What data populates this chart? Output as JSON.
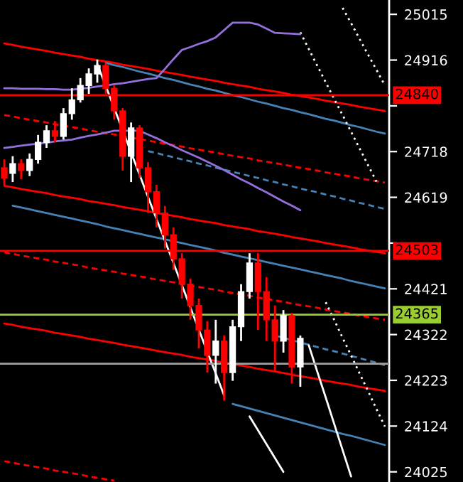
{
  "chart_data": {
    "type": "candlestick",
    "categories": [
      null,
      null,
      null,
      null,
      null,
      null,
      null,
      null,
      null,
      null,
      null,
      null,
      null,
      null,
      null,
      null,
      null,
      null,
      null,
      null,
      null,
      null,
      null,
      null,
      null,
      null,
      null,
      null,
      null,
      null,
      null,
      null,
      null,
      null,
      null,
      null,
      null,
      null,
      null,
      null,
      null,
      null,
      null,
      null,
      null,
      null
    ],
    "ohlc": [
      [
        24683,
        24701,
        24646,
        24661
      ],
      [
        24671,
        24708,
        24652,
        24692
      ],
      [
        24692,
        24701,
        24658,
        24677
      ],
      [
        24677,
        24714,
        24665,
        24701
      ],
      [
        24701,
        24754,
        24692,
        24738
      ],
      [
        24738,
        24775,
        24726,
        24763
      ],
      [
        24763,
        24784,
        24738,
        24751
      ],
      [
        24751,
        24812,
        24744,
        24800
      ],
      [
        24800,
        24855,
        24787,
        24830
      ],
      [
        24830,
        24877,
        24824,
        24861
      ],
      [
        24861,
        24898,
        24843,
        24886
      ],
      [
        24886,
        24917,
        24867,
        24904
      ],
      [
        24904,
        24910,
        24843,
        24855
      ],
      [
        24855,
        24861,
        24787,
        24806
      ],
      [
        24806,
        24812,
        24677,
        24708
      ],
      [
        24708,
        24781,
        24652,
        24769
      ],
      [
        24769,
        24775,
        24661,
        24683
      ],
      [
        24683,
        24695,
        24585,
        24631
      ],
      [
        24631,
        24646,
        24554,
        24585
      ],
      [
        24585,
        24600,
        24508,
        24538
      ],
      [
        24538,
        24554,
        24462,
        24486
      ],
      [
        24486,
        24498,
        24400,
        24431
      ],
      [
        24431,
        24443,
        24354,
        24385
      ],
      [
        24385,
        24400,
        24292,
        24332
      ],
      [
        24332,
        24351,
        24240,
        24277
      ],
      [
        24277,
        24354,
        24216,
        24308
      ],
      [
        24308,
        24320,
        24179,
        24240
      ],
      [
        24240,
        24354,
        24222,
        24339
      ],
      [
        24339,
        24431,
        24308,
        24415
      ],
      [
        24415,
        24498,
        24400,
        24477
      ],
      [
        24477,
        24498,
        24332,
        24415
      ],
      [
        24415,
        24446,
        24308,
        24354
      ],
      [
        24354,
        24385,
        24240,
        24308
      ],
      [
        24308,
        24375,
        24283,
        24363
      ],
      [
        24363,
        24369,
        24216,
        24252
      ],
      [
        24252,
        24320,
        24209,
        24314
      ],
      null,
      null,
      null,
      null,
      null,
      null,
      null,
      null,
      null,
      null
    ],
    "colors": [
      "#ff0000",
      "#ffffff",
      "#ff0000",
      "#ffffff",
      "#ffffff",
      "#ffffff",
      "#ff0000",
      "#ffffff",
      "#ffffff",
      "#ffffff",
      "#ffffff",
      "#ffffff",
      "#ff0000",
      "#ff0000",
      "#ff0000",
      "#ffffff",
      "#ff0000",
      "#ff0000",
      "#ff0000",
      "#ff0000",
      "#ff0000",
      "#ff0000",
      "#ff0000",
      "#ff0000",
      "#ff0000",
      "#ffffff",
      "#ff0000",
      "#ffffff",
      "#ffffff",
      "#ffffff",
      "#ff0000",
      "#ff0000",
      "#ff0000",
      "#ffffff",
      "#ff0000",
      "#ffffff",
      null,
      null,
      null,
      null,
      null,
      null,
      null,
      null,
      null,
      null
    ],
    "series": [
      {
        "type": "line",
        "color": "#ff0000",
        "line_style": "solid",
        "values": [
          24952,
          24949,
          24945,
          24942,
          24939,
          24936,
          24932,
          24929,
          24926,
          24923,
          24919,
          24916,
          24913,
          24910,
          24906,
          24903,
          24900,
          24897,
          24893,
          24890,
          24887,
          24884,
          24880,
          24877,
          24874,
          24871,
          24867,
          24864,
          24861,
          24858,
          24854,
          24851,
          24848,
          24845,
          24841,
          24838,
          24835,
          24832,
          24828,
          24825,
          24822,
          24819,
          24815,
          24812,
          24809,
          24806
        ]
      },
      {
        "type": "line",
        "color": "#ff0000",
        "line_style": "dashed",
        "values": [
          24797,
          24794,
          24790,
          24787,
          24784,
          24781,
          24777,
          24774,
          24771,
          24768,
          24764,
          24761,
          24758,
          24755,
          24751,
          24748,
          24745,
          24742,
          24738,
          24735,
          24732,
          24729,
          24725,
          24722,
          24719,
          24716,
          24712,
          24709,
          24706,
          24703,
          24699,
          24696,
          24693,
          24690,
          24686,
          24683,
          24680,
          24677,
          24673,
          24670,
          24667,
          24664,
          24660,
          24657,
          24654,
          24651
        ]
      },
      {
        "type": "line",
        "color": "#ff0000",
        "line_style": "solid",
        "values": [
          24644,
          24641,
          24637,
          24634,
          24631,
          24628,
          24624,
          24621,
          24618,
          24615,
          24611,
          24608,
          24605,
          24602,
          24598,
          24595,
          24592,
          24589,
          24585,
          24582,
          24579,
          24576,
          24572,
          24569,
          24566,
          24563,
          24559,
          24556,
          24553,
          24550,
          24546,
          24543,
          24540,
          24537,
          24533,
          24530,
          24527,
          24524,
          24520,
          24517,
          24514,
          24511,
          24507,
          24504,
          24501,
          24498
        ]
      },
      {
        "type": "line",
        "color": "#ff0000",
        "line_style": "dashed",
        "values": [
          24500,
          24497,
          24493,
          24490,
          24487,
          24484,
          24480,
          24477,
          24474,
          24471,
          24467,
          24464,
          24461,
          24458,
          24454,
          24451,
          24448,
          24445,
          24441,
          24438,
          24435,
          24432,
          24428,
          24425,
          24422,
          24419,
          24415,
          24412,
          24409,
          24406,
          24402,
          24399,
          24396,
          24393,
          24389,
          24386,
          24383,
          24380,
          24376,
          24373,
          24370,
          24367,
          24363,
          24360,
          24357,
          24354
        ]
      },
      {
        "type": "line",
        "color": "#ff0000",
        "line_style": "solid",
        "values": [
          24346,
          24343,
          24339,
          24336,
          24333,
          24330,
          24326,
          24323,
          24320,
          24317,
          24313,
          24310,
          24307,
          24304,
          24300,
          24297,
          24294,
          24291,
          24287,
          24284,
          24281,
          24278,
          24274,
          24271,
          24268,
          24265,
          24261,
          24258,
          24255,
          24252,
          24248,
          24245,
          24242,
          24239,
          24235,
          24232,
          24229,
          24226,
          24222,
          24219,
          24216,
          24213,
          24209,
          24206,
          24203,
          24200
        ]
      },
      {
        "type": "line",
        "color": "#ff0000",
        "line_style": "dashed",
        "values": [
          24048,
          24045,
          24041,
          24038,
          24035,
          24032,
          24028,
          24025,
          24022,
          24019,
          24015,
          24012,
          24009,
          24006,
          null,
          null,
          null,
          null,
          null,
          null,
          null,
          null,
          null,
          null,
          null,
          null,
          null,
          null,
          null,
          null,
          null,
          null,
          null,
          null,
          null,
          null,
          null,
          null,
          null,
          null,
          null,
          null,
          null,
          null,
          null,
          null
        ]
      },
      {
        "type": "line",
        "color": "#4682b4",
        "line_style": "solid",
        "values": [
          null,
          null,
          null,
          null,
          null,
          null,
          null,
          null,
          null,
          null,
          null,
          null,
          24910,
          24905,
          24901,
          24896,
          24891,
          24887,
          24882,
          24877,
          24873,
          24868,
          24863,
          24859,
          24854,
          24850,
          24845,
          24840,
          24836,
          24831,
          24826,
          24822,
          24817,
          24812,
          24808,
          24803,
          24799,
          24794,
          24789,
          24785,
          24780,
          24775,
          24771,
          24766,
          24761,
          24757
        ]
      },
      {
        "type": "line",
        "color": "#4682b4",
        "line_style": "dashed",
        "values": [
          null,
          null,
          null,
          null,
          null,
          null,
          null,
          null,
          null,
          null,
          null,
          null,
          null,
          null,
          null,
          null,
          null,
          24719,
          24715,
          24710,
          24706,
          24701,
          24697,
          24692,
          24688,
          24683,
          24679,
          24674,
          24670,
          24665,
          24661,
          24656,
          24652,
          24647,
          24643,
          24638,
          24634,
          24630,
          24625,
          24621,
          24616,
          24612,
          24607,
          24603,
          24598,
          24594
        ]
      },
      {
        "type": "line",
        "color": "#4682b4",
        "line_style": "solid",
        "values": [
          null,
          24601,
          24597,
          24593,
          24589,
          24585,
          24581,
          24577,
          24573,
          24569,
          24565,
          24561,
          24556,
          24552,
          24548,
          24544,
          24540,
          24536,
          24532,
          24528,
          24524,
          24520,
          24516,
          24512,
          24508,
          24504,
          24499,
          24495,
          24491,
          24487,
          24483,
          24479,
          24475,
          24471,
          24467,
          24463,
          24459,
          24455,
          24451,
          24447,
          24443,
          24438,
          24434,
          24430,
          24426,
          24422
        ]
      },
      {
        "type": "line",
        "color": "#4682b4",
        "line_style": "dashed",
        "values": [
          null,
          null,
          null,
          null,
          null,
          null,
          null,
          null,
          null,
          null,
          null,
          null,
          null,
          null,
          null,
          null,
          null,
          null,
          null,
          null,
          null,
          null,
          null,
          null,
          null,
          null,
          null,
          null,
          null,
          null,
          null,
          null,
          24320,
          24315,
          24310,
          24305,
          24300,
          24295,
          24290,
          24286,
          24281,
          24276,
          24271,
          24266,
          24261,
          24256
        ]
      },
      {
        "type": "line",
        "color": "#4682b4",
        "line_style": "solid",
        "values": [
          null,
          null,
          null,
          null,
          null,
          null,
          null,
          null,
          null,
          null,
          null,
          null,
          null,
          null,
          null,
          null,
          null,
          null,
          null,
          null,
          null,
          null,
          null,
          null,
          null,
          null,
          null,
          24172,
          24167,
          24162,
          24157,
          24152,
          24147,
          24142,
          24137,
          24132,
          24127,
          24122,
          24117,
          24112,
          24107,
          24103,
          24098,
          24093,
          24088,
          24083
        ]
      },
      {
        "type": "line",
        "color": "#ffffff",
        "line_style": "solid",
        "values": [
          null,
          null,
          null,
          null,
          null,
          null,
          null,
          null,
          null,
          null,
          null,
          24907,
          24860,
          24812,
          24764,
          24716,
          24668,
          24620,
          24572,
          24525,
          24477,
          24429,
          24381,
          24333,
          24285,
          24238,
          24190,
          null,
          null,
          null,
          null,
          null,
          null,
          null,
          null,
          null,
          null,
          null,
          null,
          null,
          null,
          null,
          null,
          null,
          null,
          null
        ]
      },
      {
        "type": "line",
        "color": "#ffffff",
        "line_style": "solid",
        "values": [
          null,
          null,
          null,
          null,
          null,
          null,
          null,
          null,
          null,
          null,
          null,
          null,
          null,
          null,
          null,
          null,
          null,
          null,
          null,
          null,
          null,
          null,
          null,
          null,
          null,
          null,
          null,
          null,
          null,
          null,
          null,
          null,
          null,
          null,
          null,
          null,
          24299,
          24242,
          24186,
          24129,
          24072,
          24015,
          null,
          null,
          null,
          null
        ]
      },
      {
        "type": "line",
        "color": "#ffffff",
        "line_style": "solid",
        "values": [
          null,
          null,
          null,
          null,
          null,
          null,
          null,
          null,
          null,
          null,
          null,
          null,
          null,
          null,
          null,
          null,
          null,
          null,
          null,
          null,
          null,
          null,
          null,
          null,
          null,
          null,
          null,
          null,
          null,
          24145,
          24115,
          24085,
          24055,
          24025,
          null,
          null,
          null,
          null,
          null,
          null,
          null,
          null,
          null,
          null,
          null,
          null
        ]
      },
      {
        "type": "line",
        "color": "#ffffff",
        "line_style": "dotted",
        "values": [
          null,
          null,
          null,
          null,
          null,
          null,
          null,
          null,
          null,
          null,
          null,
          null,
          null,
          null,
          null,
          null,
          null,
          null,
          null,
          null,
          null,
          null,
          null,
          null,
          null,
          null,
          null,
          null,
          null,
          null,
          null,
          null,
          null,
          null,
          null,
          null,
          null,
          null,
          null,
          null,
          25029,
          24996,
          24962,
          24928,
          24895,
          24861
        ]
      },
      {
        "type": "line",
        "color": "#ffffff",
        "line_style": "dotted",
        "values": [
          null,
          null,
          null,
          null,
          null,
          null,
          null,
          null,
          null,
          null,
          null,
          null,
          null,
          null,
          null,
          null,
          null,
          null,
          null,
          null,
          null,
          null,
          null,
          null,
          null,
          null,
          null,
          null,
          null,
          null,
          null,
          null,
          null,
          null,
          null,
          24976,
          24940,
          24904,
          24868,
          24832,
          24797,
          24761,
          24725,
          24689,
          24653,
          null
        ]
      },
      {
        "type": "line",
        "color": "#ffffff",
        "line_style": "dotted",
        "values": [
          null,
          null,
          null,
          null,
          null,
          null,
          null,
          null,
          null,
          null,
          null,
          null,
          null,
          null,
          null,
          null,
          null,
          null,
          null,
          null,
          null,
          null,
          null,
          null,
          null,
          null,
          null,
          null,
          null,
          null,
          null,
          null,
          null,
          null,
          null,
          null,
          null,
          null,
          24392,
          24354,
          24315,
          24277,
          24238,
          24200,
          24161,
          24123
        ]
      },
      {
        "type": "line",
        "color": "#9370db",
        "line_style": "solid",
        "values": [
          24855,
          24855,
          24854,
          24854,
          24854,
          24853,
          24853,
          24852,
          24852,
          24854,
          24856,
          24859,
          24861,
          24864,
          24866,
          24869,
          24872,
          24875,
          24877,
          24897,
          24918,
          24938,
          24944,
          24951,
          24957,
          24965,
          24981,
          24997,
          24997,
          24997,
          24993,
          24984,
          24975,
          24974,
          24973,
          24972,
          null,
          null,
          null,
          null,
          null,
          null,
          null,
          null,
          null,
          null
        ]
      },
      {
        "type": "line",
        "color": "#9370db",
        "line_style": "solid",
        "values": [
          24726,
          24728,
          24731,
          24733,
          24735,
          24737,
          24740,
          24742,
          24744,
          24748,
          24752,
          24755,
          24759,
          24763,
          24763,
          24763,
          24763,
          24755,
          24747,
          24738,
          24730,
          24721,
          24713,
          24705,
          24696,
          24687,
          24678,
          24668,
          24658,
          24649,
          24639,
          24630,
          24620,
          24610,
          24601,
          24591,
          null,
          null,
          null,
          null,
          null,
          null,
          null,
          null,
          null,
          null
        ]
      }
    ],
    "ref_lines": [
      {
        "axis": "y",
        "value": 24840,
        "label": "24840",
        "color": "#ff0000"
      },
      {
        "axis": "y",
        "value": 24503,
        "label": "24503",
        "color": "#ff0000"
      },
      {
        "axis": "y",
        "value": 24365,
        "label": "24365",
        "color": "#9acd32"
      },
      {
        "axis": "y",
        "value": 24259,
        "color": "#a0a0a0"
      }
    ],
    "ylim": [
      24003,
      25046
    ],
    "yticks": [
      24025,
      24124,
      24223,
      24322,
      24421,
      {
        "value": 24520,
        "label": null
      },
      24619,
      24718,
      {
        "value": 24817,
        "label": null
      },
      24916,
      25015
    ],
    "tick_labels": "y",
    "grid": false,
    "legend": false,
    "marker": "none"
  }
}
